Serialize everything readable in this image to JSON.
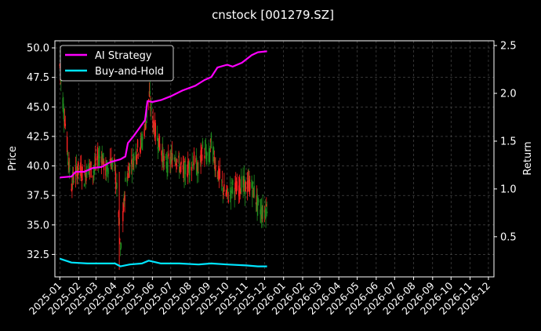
{
  "chart_data": {
    "type": "line",
    "title": "cnstock [001279.SZ]",
    "ylabel": "Price",
    "y2label": "Return",
    "x_ticks": [
      "2025-01",
      "2025-02",
      "2025-03",
      "2025-04",
      "2025-05",
      "2025-06",
      "2025-07",
      "2025-08",
      "2025-09",
      "2025-10",
      "2025-11",
      "2025-12",
      "2026-01",
      "2026-02",
      "2026-03",
      "2026-04",
      "2026-05",
      "2026-06",
      "2026-07",
      "2026-08",
      "2026-09",
      "2026-10",
      "2026-11",
      "2026-12"
    ],
    "x_range": [
      "2024-12-24",
      "2026-12-10"
    ],
    "ylim": [
      30.6,
      50.6
    ],
    "y_ticks": [
      32.5,
      35.0,
      37.5,
      40.0,
      42.5,
      45.0,
      47.5,
      50.0
    ],
    "y_tick_labels": [
      "32.5",
      "35.0",
      "37.5",
      "40.0",
      "42.5",
      "45.0",
      "47.5",
      "50.0"
    ],
    "y2lim": [
      0.08,
      2.55
    ],
    "y2_ticks": [
      0.5,
      1.0,
      1.5,
      2.0,
      2.5
    ],
    "y2_tick_labels": [
      "0.5",
      "1.0",
      "1.5",
      "2.0",
      "2.5"
    ],
    "grid": true,
    "legend_position": "top-left",
    "colors": {
      "background": "#000000",
      "up_candle": "#ff2222",
      "down_candle": "#1f8c1f",
      "ai_strategy": "#ff00ff",
      "buy_and_hold": "#00e5ff",
      "grid": "#555555",
      "text": "#ffffff"
    },
    "price_path": [
      [
        "2025-01-01",
        48.5
      ],
      [
        "2025-01-05",
        46.0
      ],
      [
        "2025-01-10",
        43.5
      ],
      [
        "2025-01-15",
        40.5
      ],
      [
        "2025-01-20",
        38.5
      ],
      [
        "2025-01-27",
        39.5
      ],
      [
        "2025-02-03",
        39.8
      ],
      [
        "2025-02-10",
        39.0
      ],
      [
        "2025-02-17",
        40.0
      ],
      [
        "2025-02-24",
        39.5
      ],
      [
        "2025-03-03",
        40.5
      ],
      [
        "2025-03-10",
        41.0
      ],
      [
        "2025-03-17",
        39.5
      ],
      [
        "2025-03-24",
        40.5
      ],
      [
        "2025-04-01",
        39.8
      ],
      [
        "2025-04-07",
        36.0
      ],
      [
        "2025-04-10",
        32.5
      ],
      [
        "2025-04-14",
        35.5
      ],
      [
        "2025-04-18",
        38.5
      ],
      [
        "2025-04-25",
        40.0
      ],
      [
        "2025-05-01",
        40.5
      ],
      [
        "2025-05-08",
        41.5
      ],
      [
        "2025-05-15",
        42.0
      ],
      [
        "2025-05-22",
        44.0
      ],
      [
        "2025-05-27",
        46.0
      ],
      [
        "2025-06-01",
        44.0
      ],
      [
        "2025-06-08",
        42.5
      ],
      [
        "2025-06-15",
        41.5
      ],
      [
        "2025-06-22",
        40.0
      ],
      [
        "2025-07-01",
        40.5
      ],
      [
        "2025-07-08",
        41.0
      ],
      [
        "2025-07-15",
        40.0
      ],
      [
        "2025-07-22",
        39.5
      ],
      [
        "2025-08-01",
        40.0
      ],
      [
        "2025-08-08",
        40.5
      ],
      [
        "2025-08-15",
        39.5
      ],
      [
        "2025-08-22",
        41.5
      ],
      [
        "2025-09-01",
        40.5
      ],
      [
        "2025-09-05",
        42.0
      ],
      [
        "2025-09-12",
        40.0
      ],
      [
        "2025-09-19",
        39.0
      ],
      [
        "2025-09-26",
        37.8
      ],
      [
        "2025-10-03",
        37.5
      ],
      [
        "2025-10-10",
        38.2
      ],
      [
        "2025-10-17",
        38.0
      ],
      [
        "2025-10-24",
        38.5
      ],
      [
        "2025-11-01",
        38.2
      ],
      [
        "2025-11-07",
        38.5
      ],
      [
        "2025-11-14",
        37.8
      ],
      [
        "2025-11-21",
        36.5
      ],
      [
        "2025-11-28",
        36.0
      ],
      [
        "2025-12-05",
        36.5
      ]
    ],
    "series": [
      {
        "name": "AI Strategy",
        "color": "#ff00ff",
        "axis": "right",
        "points": [
          [
            "2025-01-01",
            1.12
          ],
          [
            "2025-01-20",
            1.13
          ],
          [
            "2025-01-27",
            1.18
          ],
          [
            "2025-02-10",
            1.18
          ],
          [
            "2025-02-24",
            1.22
          ],
          [
            "2025-03-10",
            1.23
          ],
          [
            "2025-03-24",
            1.28
          ],
          [
            "2025-04-10",
            1.31
          ],
          [
            "2025-04-18",
            1.34
          ],
          [
            "2025-04-22",
            1.48
          ],
          [
            "2025-05-01",
            1.55
          ],
          [
            "2025-05-10",
            1.63
          ],
          [
            "2025-05-20",
            1.72
          ],
          [
            "2025-05-24",
            1.92
          ],
          [
            "2025-06-01",
            1.91
          ],
          [
            "2025-06-15",
            1.93
          ],
          [
            "2025-07-01",
            1.97
          ],
          [
            "2025-07-20",
            2.03
          ],
          [
            "2025-08-10",
            2.08
          ],
          [
            "2025-08-25",
            2.14
          ],
          [
            "2025-09-05",
            2.17
          ],
          [
            "2025-09-15",
            2.27
          ],
          [
            "2025-10-01",
            2.3
          ],
          [
            "2025-10-10",
            2.28
          ],
          [
            "2025-10-25",
            2.32
          ],
          [
            "2025-11-10",
            2.4
          ],
          [
            "2025-11-20",
            2.43
          ],
          [
            "2025-12-05",
            2.44
          ]
        ]
      },
      {
        "name": "Buy-and-Hold",
        "color": "#00e5ff",
        "axis": "right",
        "points": [
          [
            "2025-01-01",
            0.27
          ],
          [
            "2025-01-20",
            0.23
          ],
          [
            "2025-02-15",
            0.22
          ],
          [
            "2025-03-15",
            0.22
          ],
          [
            "2025-04-01",
            0.22
          ],
          [
            "2025-04-10",
            0.19
          ],
          [
            "2025-04-25",
            0.21
          ],
          [
            "2025-05-15",
            0.22
          ],
          [
            "2025-05-26",
            0.25
          ],
          [
            "2025-06-15",
            0.22
          ],
          [
            "2025-07-15",
            0.22
          ],
          [
            "2025-08-15",
            0.21
          ],
          [
            "2025-09-05",
            0.22
          ],
          [
            "2025-10-01",
            0.21
          ],
          [
            "2025-11-01",
            0.2
          ],
          [
            "2025-11-20",
            0.19
          ],
          [
            "2025-12-05",
            0.19
          ]
        ]
      }
    ]
  }
}
